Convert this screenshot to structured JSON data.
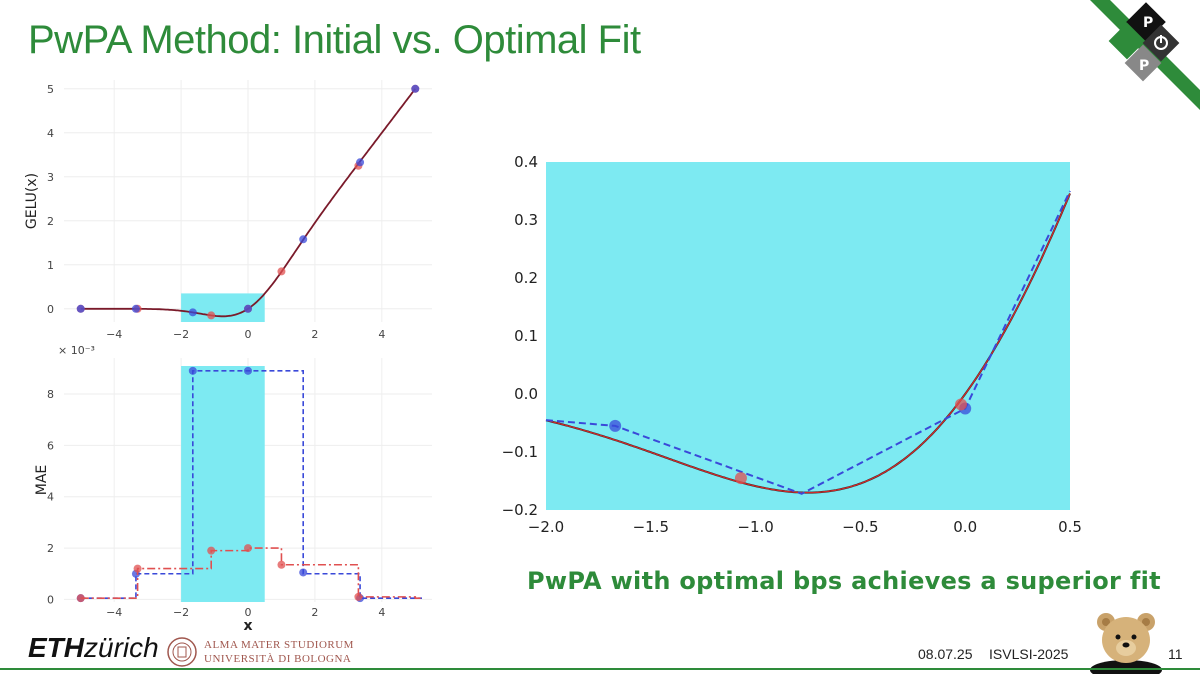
{
  "slide": {
    "title": "PwPA Method: Initial vs. Optimal Fit",
    "caption": "PwPA with optimal bps achieves a superior fit",
    "footer": {
      "eth_bold": "ETH",
      "eth_rest": "zürich",
      "bologna_line1": "ALMA MATER STUDIORUM",
      "bologna_line2": "UNIVERSITÀ DI BOLOGNA",
      "date": "08.07.25",
      "conference": "ISVLSI-2025",
      "page": "11"
    },
    "logo_letters": [
      "P",
      "P"
    ],
    "colors": {
      "accent": "#2e8b3a",
      "highlight": "#7deaf2",
      "red": "#e05050",
      "blue": "#3a49d9",
      "curve": "#7a1a2a"
    }
  },
  "chart_data": [
    {
      "type": "line",
      "ylabel": "GELU(x)",
      "xlabel": "",
      "xlim": [
        -5.5,
        5.5
      ],
      "ylim": [
        -0.3,
        5.2
      ],
      "xticks": [
        -4,
        -2,
        0,
        2,
        4
      ],
      "yticks": [
        0,
        1,
        2,
        3,
        4,
        5
      ],
      "highlight_x": [
        -2,
        0.5
      ],
      "highlight_y": [
        -0.3,
        0.35
      ],
      "series": [
        {
          "kind": "curve",
          "function": "gelu",
          "color": "#7a1a2a"
        },
        {
          "kind": "points",
          "color": "#e05050",
          "x": [
            -5,
            -3.3,
            -1.1,
            0,
            1,
            3.3,
            5
          ],
          "y": [
            0,
            0,
            -0.15,
            0,
            0.85,
            3.25,
            5
          ]
        },
        {
          "kind": "points",
          "color": "#3a49d9",
          "x": [
            -5,
            -3.35,
            -1.65,
            0,
            1.65,
            3.35,
            5
          ],
          "y": [
            0,
            0,
            -0.08,
            0,
            1.58,
            3.33,
            5
          ]
        }
      ]
    },
    {
      "type": "line",
      "ylabel": "MAE",
      "xlabel": "x",
      "scale_label": "× 10⁻³",
      "xlim": [
        -5.5,
        5.5
      ],
      "ylim": [
        -0.1,
        9.4
      ],
      "xticks": [
        -4,
        -2,
        0,
        2,
        4
      ],
      "yticks": [
        0,
        2,
        4,
        6,
        8
      ],
      "highlight_x": [
        -2,
        0.5
      ],
      "series": [
        {
          "kind": "step",
          "color": "#3a49d9",
          "breaks": [
            -5,
            -3.35,
            -1.65,
            0,
            1.65,
            3.35,
            5
          ],
          "values": [
            1.0,
            8.9,
            8.9,
            1.0,
            0.05,
            0.05
          ],
          "points_x": [
            -5,
            -3.35,
            -1.65,
            0,
            1.65,
            3.35
          ],
          "points_y": [
            0.05,
            1.0,
            8.9,
            8.9,
            1.05,
            0.05
          ]
        },
        {
          "kind": "step",
          "color": "#e05050",
          "breaks": [
            -5,
            -3.3,
            -1.1,
            0,
            1,
            3.3,
            5
          ],
          "values": [
            1.2,
            1.9,
            2.0,
            1.35,
            0.1,
            0.05
          ],
          "points_x": [
            -5,
            -3.3,
            -1.1,
            0,
            1,
            3.3
          ],
          "points_y": [
            0.05,
            1.2,
            1.9,
            2.0,
            1.35,
            0.1
          ]
        }
      ]
    },
    {
      "type": "line",
      "xlabel": "",
      "ylabel": "",
      "xlim": [
        -2.0,
        0.5
      ],
      "ylim": [
        -0.2,
        0.4
      ],
      "xticks": [
        "−2.0",
        "−1.5",
        "−1.0",
        "−0.5",
        "0.0",
        "0.5"
      ],
      "xtick_values": [
        -2.0,
        -1.5,
        -1.0,
        -0.5,
        0.0,
        0.5
      ],
      "yticks": [
        "0.4",
        "0.3",
        "0.2",
        "0.1",
        "0.0",
        "−0.1",
        "−0.2"
      ],
      "ytick_values": [
        0.4,
        0.3,
        0.2,
        0.1,
        0.0,
        -0.1,
        -0.2
      ],
      "series": [
        {
          "kind": "curve",
          "function": "gelu",
          "color": "#7a1a2a"
        },
        {
          "kind": "dashed",
          "color": "#3a49d9",
          "x": [
            -2.0,
            -1.67,
            -0.78,
            0.0,
            0.5
          ],
          "y": [
            -0.045,
            -0.055,
            -0.172,
            -0.025,
            0.35
          ]
        },
        {
          "kind": "points",
          "color": "#3a49d9",
          "x": [
            -1.67,
            0.0
          ],
          "y": [
            -0.055,
            -0.025
          ]
        },
        {
          "kind": "points",
          "color": "#e05050",
          "x": [
            -1.07,
            -0.02
          ],
          "y": [
            -0.145,
            -0.018
          ]
        }
      ]
    }
  ]
}
